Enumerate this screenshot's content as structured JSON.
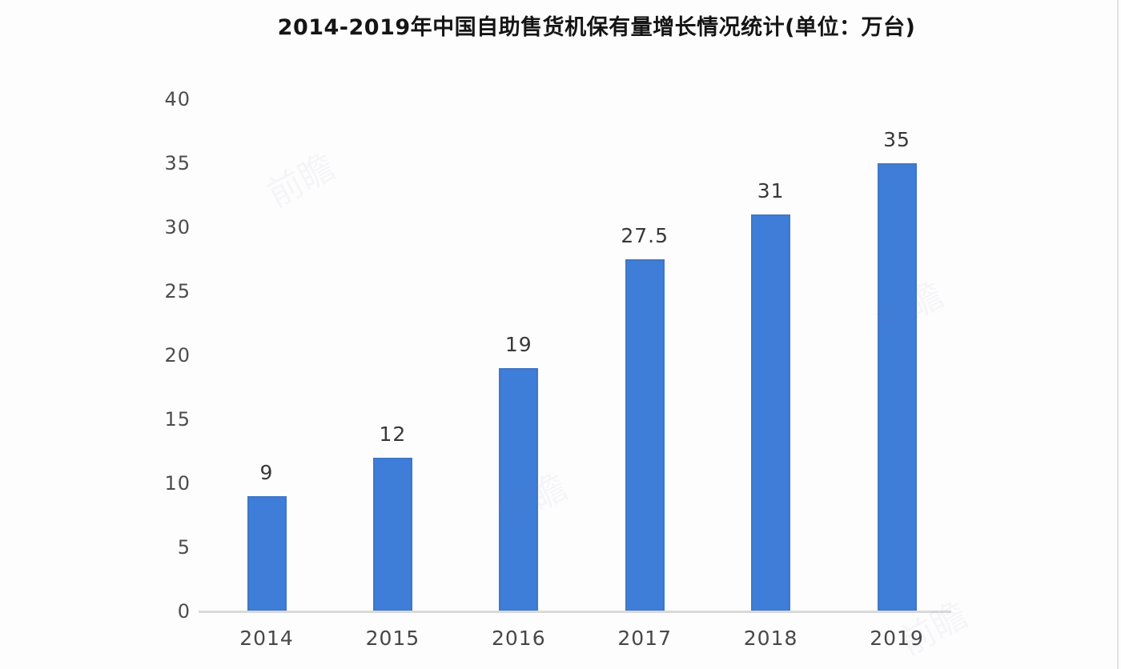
{
  "title": "2014-2019年中国自助售货机保有量增长情况统计(单位：万台)",
  "watermark_text": "前瞻",
  "chart_data": {
    "type": "bar",
    "title": "2014-2019年中国自助售货机保有量增长情况统计(单位：万台)",
    "unit_label": "万台",
    "categories": [
      "2014",
      "2015",
      "2016",
      "2017",
      "2018",
      "2019"
    ],
    "values": [
      9,
      12,
      19,
      27.5,
      31,
      35
    ],
    "data_labels": [
      "9",
      "12",
      "19",
      "27.5",
      "31",
      "35"
    ],
    "yticks": [
      0,
      5,
      10,
      15,
      20,
      25,
      30,
      35,
      40
    ],
    "ylim": [
      0,
      40
    ],
    "xlabel": "",
    "ylabel": "",
    "grid": false,
    "legend": null,
    "bar_color": "#3e7dd8",
    "axis_line_color": "#d9d9d9",
    "ytick_color": "#4d4d4d",
    "xtick_color": "#474747",
    "data_label_color": "#383838",
    "title_color": "#151515"
  }
}
